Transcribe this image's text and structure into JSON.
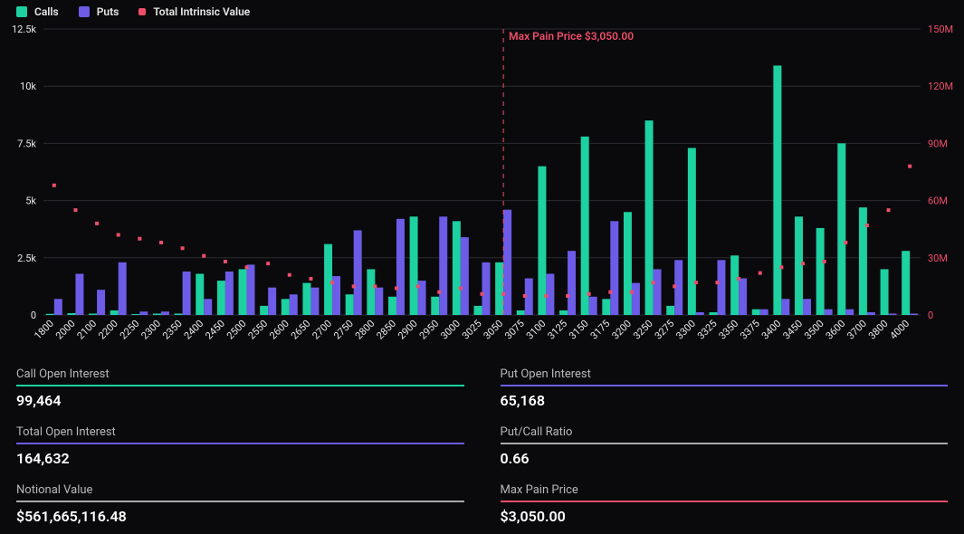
{
  "legend": {
    "calls": "Calls",
    "puts": "Puts",
    "tiv": "Total Intrinsic Value"
  },
  "colors": {
    "calls": "#1dd1a1",
    "puts": "#6c5ce7",
    "tiv": "#ef4d6a",
    "bg": "#0a0a0c",
    "grid": "#2a2a30",
    "text": "#e8e8e8",
    "stat_underline_call": "#1dd1a1",
    "stat_underline_put": "#6c5ce7",
    "stat_underline_total": "#6c5ce7",
    "stat_underline_ratio": "#aaaaaa",
    "stat_underline_notional": "#aaaaaa",
    "stat_underline_maxpain": "#ef4d6a"
  },
  "chart": {
    "type": "grouped-bar+scatter",
    "left_axis_label_suffix": "k",
    "left_ylim": [
      0,
      12500
    ],
    "left_ticks": [
      0,
      2500,
      5000,
      7500,
      10000,
      12500
    ],
    "left_tick_labels": [
      "0",
      "2.5k",
      "5k",
      "7.5k",
      "10k",
      "12.5k"
    ],
    "right_ylim": [
      0,
      150
    ],
    "right_ticks": [
      0,
      30,
      60,
      90,
      120,
      150
    ],
    "right_tick_labels": [
      "0",
      "30M",
      "60M",
      "90M",
      "120M",
      "150M"
    ],
    "strikes": [
      1800,
      2000,
      2100,
      2200,
      2250,
      2300,
      2350,
      2400,
      2450,
      2500,
      2550,
      2600,
      2650,
      2700,
      2750,
      2800,
      2850,
      2900,
      2950,
      3000,
      3025,
      3050,
      3075,
      3100,
      3125,
      3150,
      3175,
      3200,
      3250,
      3275,
      3300,
      3325,
      3350,
      3375,
      3400,
      3450,
      3500,
      3600,
      3700,
      3800,
      4000
    ],
    "calls": [
      50,
      80,
      60,
      200,
      40,
      60,
      60,
      1800,
      1500,
      2000,
      400,
      700,
      1400,
      3100,
      900,
      2000,
      800,
      4300,
      800,
      4100,
      400,
      2300,
      200,
      6500,
      200,
      7800,
      700,
      4500,
      8500,
      400,
      7300,
      120,
      2600,
      250,
      10900,
      4300,
      3800,
      7500,
      4700,
      2000,
      2800
    ],
    "puts": [
      700,
      1800,
      1100,
      2300,
      150,
      150,
      1900,
      700,
      1900,
      2200,
      1200,
      900,
      1200,
      1700,
      3700,
      1200,
      4200,
      1500,
      4300,
      3400,
      2300,
      4600,
      1600,
      1800,
      2800,
      800,
      4100,
      1400,
      2000,
      2400,
      120,
      2400,
      1600,
      250,
      700,
      700,
      250,
      250,
      120,
      60,
      60
    ],
    "tiv": [
      68,
      55,
      48,
      42,
      40,
      38,
      35,
      31,
      28,
      25,
      27,
      21,
      19,
      17,
      15,
      15,
      14,
      15,
      12,
      14,
      11,
      11,
      10,
      10,
      10,
      11,
      12,
      12,
      17,
      15,
      17,
      17,
      19,
      22,
      25,
      27,
      28,
      38,
      47,
      55,
      78
    ],
    "max_pain_strike": 3050,
    "max_pain_label": "Max Pain Price $3,050.00",
    "bar_width": 0.38,
    "tiv_marker_size": 4
  },
  "stats": {
    "call_oi": {
      "label": "Call Open Interest",
      "value": "99,464"
    },
    "put_oi": {
      "label": "Put Open Interest",
      "value": "65,168"
    },
    "total_oi": {
      "label": "Total Open Interest",
      "value": "164,632"
    },
    "pc_ratio": {
      "label": "Put/Call Ratio",
      "value": "0.66"
    },
    "notional": {
      "label": "Notional Value",
      "value": "$561,665,116.48"
    },
    "max_pain": {
      "label": "Max Pain Price",
      "value": "$3,050.00"
    }
  }
}
